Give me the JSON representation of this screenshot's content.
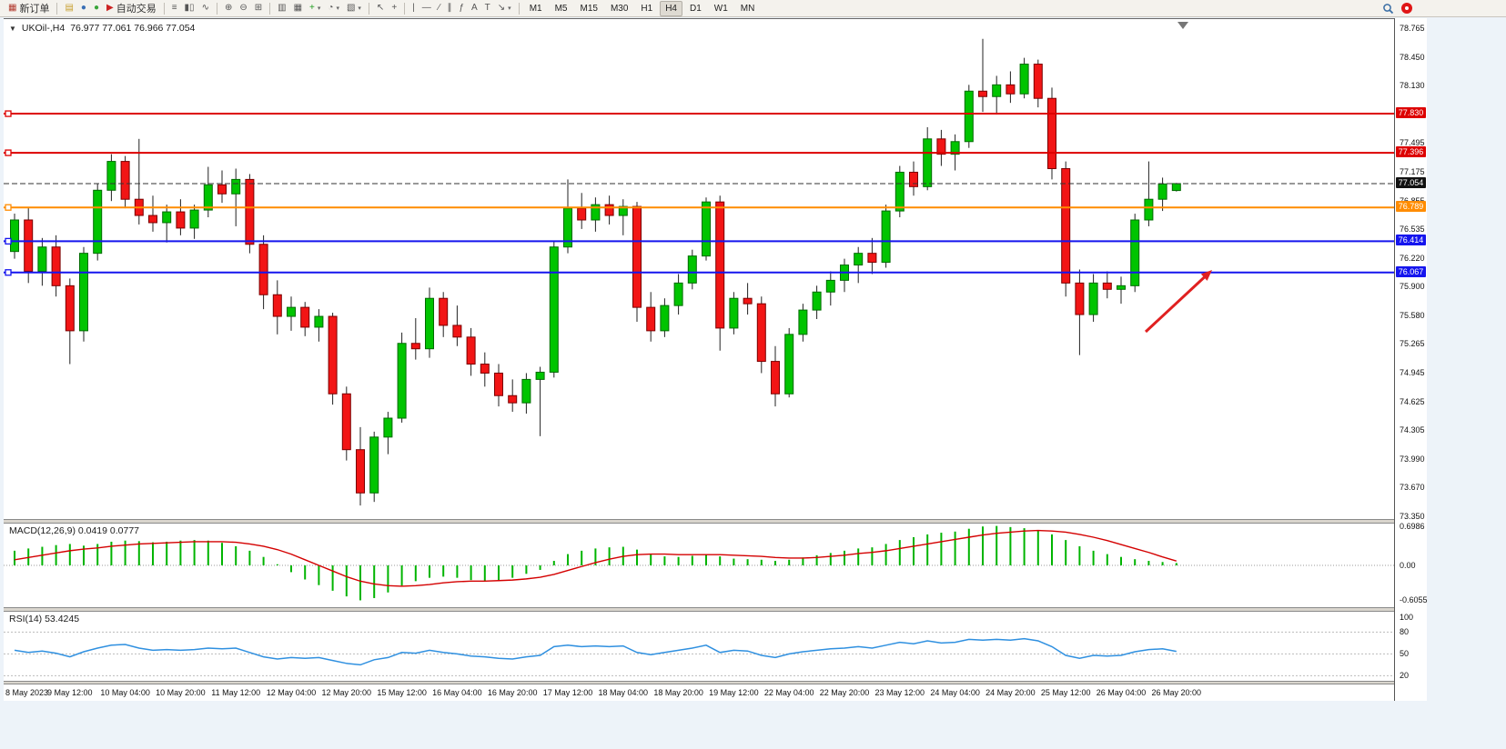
{
  "toolbar": {
    "groups": [
      {
        "items": [
          {
            "name": "new-order-button",
            "glyph": "▦",
            "glyph_color": "#b23a2e",
            "label": "新订单"
          }
        ]
      },
      {
        "items": [
          {
            "name": "charts-button",
            "glyph": "▤",
            "glyph_color": "#c79f2e"
          },
          {
            "name": "profiles-button",
            "glyph": "●",
            "glyph_color": "#3a6fb5"
          },
          {
            "name": "market-watch-button",
            "glyph": "●",
            "glyph_color": "#3aa53a"
          },
          {
            "name": "autotrade-button",
            "glyph": "▶",
            "glyph_color": "#cc2222",
            "label": "自动交易"
          }
        ]
      },
      {
        "items": [
          {
            "name": "bar-chart-button",
            "glyph": "≡"
          },
          {
            "name": "candlestick-chart-button",
            "glyph": "▮▯"
          },
          {
            "name": "line-chart-button",
            "glyph": "∿"
          }
        ]
      },
      {
        "items": [
          {
            "name": "zoom-in-button",
            "glyph": "⊕"
          },
          {
            "name": "zoom-out-button",
            "glyph": "⊖"
          },
          {
            "name": "tile-windows-button",
            "glyph": "⊞"
          }
        ]
      },
      {
        "items": [
          {
            "name": "navigator-button",
            "glyph": "▥"
          },
          {
            "name": "data-window-button",
            "glyph": "▦"
          },
          {
            "name": "add-indicator-button",
            "glyph": "+",
            "glyph_color": "#1f9d1f",
            "dropdown": true
          },
          {
            "name": "period-button",
            "glyph": "◔",
            "dropdown": true
          },
          {
            "name": "template-button",
            "glyph": "▧",
            "dropdown": true
          }
        ]
      },
      {
        "items": [
          {
            "name": "cursor-button",
            "glyph": "↖"
          },
          {
            "name": "crosshair-button",
            "glyph": "+"
          }
        ]
      },
      {
        "items": [
          {
            "name": "vertical-line-button",
            "glyph": "|"
          },
          {
            "name": "horizontal-line-button",
            "glyph": "—"
          },
          {
            "name": "trendline-button",
            "glyph": "∕"
          },
          {
            "name": "channel-button",
            "glyph": "∥"
          },
          {
            "name": "fibonacci-button",
            "glyph": "ƒ"
          },
          {
            "name": "text-button",
            "glyph": "A"
          },
          {
            "name": "text-label-button",
            "glyph": "T"
          },
          {
            "name": "arrows-button",
            "glyph": "↘",
            "dropdown": true
          }
        ]
      }
    ],
    "timeframes": [
      "M1",
      "M5",
      "M15",
      "M30",
      "H1",
      "H4",
      "D1",
      "W1",
      "MN"
    ],
    "active_timeframe": "H4"
  },
  "chart": {
    "symbol_header": {
      "collapse_icon": "▼",
      "title": "UKOil-,H4",
      "ohlc": "76.977 77.061 76.966 77.054"
    },
    "levels": [
      {
        "price": 77.83,
        "label": "77.830",
        "color": "#dd0000"
      },
      {
        "price": 77.396,
        "label": "77.396",
        "color": "#dd0000"
      },
      {
        "price": 76.789,
        "label": "76.789",
        "color": "#ff8c00"
      },
      {
        "price": 76.414,
        "label": "76.414",
        "color": "#1515ee"
      },
      {
        "price": 76.067,
        "label": "76.067",
        "color": "#1515ee"
      }
    ],
    "current_price": {
      "value": 77.054,
      "label": "77.054",
      "color": "#111111"
    },
    "arrow_color": "#e02020"
  },
  "indicators": {
    "macd": {
      "label": "MACD(12,26,9) 0.0419 0.0777",
      "axis": [
        "0.6986",
        "0.00",
        "-0.6055"
      ],
      "hist_color": "#00b400",
      "signal_color": "#d40000"
    },
    "rsi": {
      "label": "RSI(14) 53.4245",
      "axis": [
        "100",
        "80",
        "50",
        "20"
      ],
      "line_color": "#2f90e0"
    }
  },
  "chart_data": {
    "type": "candlestick",
    "symbol": "UKOil-",
    "timeframe": "H4",
    "ohlc_display": [
      76.977,
      77.061,
      76.966,
      77.054
    ],
    "price_range": [
      73.32,
      78.88
    ],
    "y_axis_ticks": [
      "78.765",
      "78.450",
      "78.130",
      "77.815",
      "77.495",
      "77.175",
      "76.855",
      "76.535",
      "76.220",
      "75.900",
      "75.580",
      "75.265",
      "74.945",
      "74.625",
      "74.305",
      "73.990",
      "73.670",
      "73.350"
    ],
    "levels": [
      77.83,
      77.396,
      76.789,
      76.414,
      76.067
    ],
    "current_price": 77.054,
    "label_every": 4,
    "time_labels": [
      "8 May 2023",
      "9 May 12:00",
      "10 May 04:00",
      "10 May 20:00",
      "11 May 12:00",
      "12 May 04:00",
      "12 May 20:00",
      "15 May 12:00",
      "16 May 04:00",
      "16 May 20:00",
      "17 May 12:00",
      "18 May 04:00",
      "18 May 20:00",
      "19 May 12:00",
      "22 May 04:00",
      "22 May 20:00",
      "23 May 12:00",
      "24 May 04:00",
      "24 May 20:00",
      "25 May 12:00",
      "26 May 04:00",
      "26 May 20:00"
    ],
    "candles": [
      [
        76.3,
        76.72,
        76.22,
        76.65
      ],
      [
        76.65,
        76.78,
        75.95,
        76.08
      ],
      [
        76.08,
        76.45,
        75.92,
        76.35
      ],
      [
        76.35,
        76.48,
        75.8,
        75.92
      ],
      [
        75.92,
        76.0,
        75.05,
        75.42
      ],
      [
        75.42,
        76.35,
        75.3,
        76.28
      ],
      [
        76.28,
        77.05,
        76.2,
        76.98
      ],
      [
        76.98,
        77.38,
        76.86,
        77.3
      ],
      [
        77.3,
        77.36,
        76.78,
        76.88
      ],
      [
        76.88,
        77.55,
        76.6,
        76.7
      ],
      [
        76.7,
        76.92,
        76.52,
        76.62
      ],
      [
        76.62,
        76.82,
        76.4,
        76.74
      ],
      [
        76.74,
        76.88,
        76.48,
        76.56
      ],
      [
        76.56,
        76.82,
        76.44,
        76.76
      ],
      [
        76.76,
        77.24,
        76.68,
        77.04
      ],
      [
        77.04,
        77.2,
        76.84,
        76.94
      ],
      [
        76.94,
        77.22,
        76.58,
        77.1
      ],
      [
        77.1,
        77.16,
        76.28,
        76.38
      ],
      [
        76.38,
        76.48,
        75.66,
        75.82
      ],
      [
        75.82,
        75.98,
        75.38,
        75.58
      ],
      [
        75.58,
        75.8,
        75.42,
        75.68
      ],
      [
        75.68,
        75.74,
        75.36,
        75.46
      ],
      [
        75.46,
        75.66,
        75.3,
        75.58
      ],
      [
        75.58,
        75.62,
        74.6,
        74.72
      ],
      [
        74.72,
        74.8,
        73.98,
        74.1
      ],
      [
        74.1,
        74.35,
        73.48,
        73.62
      ],
      [
        73.62,
        74.3,
        73.52,
        74.24
      ],
      [
        74.24,
        74.52,
        74.05,
        74.45
      ],
      [
        74.45,
        75.4,
        74.4,
        75.28
      ],
      [
        75.28,
        75.56,
        75.1,
        75.22
      ],
      [
        75.22,
        75.9,
        75.12,
        75.78
      ],
      [
        75.78,
        75.85,
        75.35,
        75.48
      ],
      [
        75.48,
        75.7,
        75.25,
        75.35
      ],
      [
        75.35,
        75.45,
        74.92,
        75.05
      ],
      [
        75.05,
        75.18,
        74.8,
        74.95
      ],
      [
        74.95,
        75.05,
        74.58,
        74.7
      ],
      [
        74.7,
        74.88,
        74.52,
        74.62
      ],
      [
        74.62,
        74.95,
        74.5,
        74.88
      ],
      [
        74.88,
        75.02,
        74.25,
        74.96
      ],
      [
        74.96,
        76.42,
        74.9,
        76.35
      ],
      [
        76.35,
        77.1,
        76.28,
        76.78
      ],
      [
        76.78,
        76.95,
        76.55,
        76.65
      ],
      [
        76.65,
        76.9,
        76.52,
        76.82
      ],
      [
        76.82,
        76.92,
        76.6,
        76.7
      ],
      [
        76.7,
        76.88,
        76.48,
        76.8
      ],
      [
        76.8,
        76.85,
        75.52,
        75.68
      ],
      [
        75.68,
        75.85,
        75.3,
        75.42
      ],
      [
        75.42,
        75.78,
        75.35,
        75.7
      ],
      [
        75.7,
        76.05,
        75.6,
        75.95
      ],
      [
        75.95,
        76.32,
        75.88,
        76.25
      ],
      [
        76.25,
        76.9,
        76.2,
        76.85
      ],
      [
        76.85,
        76.92,
        75.2,
        75.45
      ],
      [
        75.45,
        75.85,
        75.38,
        75.78
      ],
      [
        75.78,
        75.95,
        75.6,
        75.72
      ],
      [
        75.72,
        75.8,
        74.95,
        75.08
      ],
      [
        75.08,
        75.25,
        74.58,
        74.72
      ],
      [
        74.72,
        75.45,
        74.68,
        75.38
      ],
      [
        75.38,
        75.72,
        75.3,
        75.65
      ],
      [
        75.65,
        75.92,
        75.55,
        75.85
      ],
      [
        75.85,
        76.08,
        75.7,
        75.98
      ],
      [
        75.98,
        76.22,
        75.85,
        76.15
      ],
      [
        76.15,
        76.35,
        75.95,
        76.28
      ],
      [
        76.28,
        76.45,
        76.05,
        76.18
      ],
      [
        76.18,
        76.82,
        76.12,
        76.75
      ],
      [
        76.75,
        77.25,
        76.68,
        77.18
      ],
      [
        77.18,
        77.3,
        76.92,
        77.02
      ],
      [
        77.02,
        77.68,
        76.98,
        77.55
      ],
      [
        77.55,
        77.65,
        77.25,
        77.38
      ],
      [
        77.38,
        77.6,
        77.2,
        77.52
      ],
      [
        77.52,
        78.15,
        77.45,
        78.08
      ],
      [
        78.08,
        78.66,
        77.85,
        78.02
      ],
      [
        78.02,
        78.25,
        77.82,
        78.15
      ],
      [
        78.15,
        78.3,
        77.95,
        78.05
      ],
      [
        78.05,
        78.45,
        78.0,
        78.38
      ],
      [
        78.38,
        78.43,
        77.9,
        78.0
      ],
      [
        78.0,
        78.12,
        77.1,
        77.22
      ],
      [
        77.22,
        77.3,
        75.8,
        75.95
      ],
      [
        75.95,
        76.1,
        75.15,
        75.6
      ],
      [
        75.6,
        76.05,
        75.52,
        75.95
      ],
      [
        75.95,
        76.08,
        75.78,
        75.88
      ],
      [
        75.88,
        76.02,
        75.72,
        75.92
      ],
      [
        75.92,
        76.72,
        75.85,
        76.65
      ],
      [
        76.65,
        77.3,
        76.58,
        76.88
      ],
      [
        76.88,
        77.12,
        76.75,
        77.05
      ],
      [
        76.977,
        77.061,
        76.966,
        77.054
      ]
    ],
    "macd": {
      "params": "12,26,9",
      "last_main": 0.0419,
      "last_signal": 0.0777,
      "scale": [
        0.6986,
        0.0,
        -0.6055
      ],
      "hist": [
        0.26,
        0.3,
        0.33,
        0.36,
        0.38,
        0.35,
        0.38,
        0.42,
        0.44,
        0.43,
        0.41,
        0.42,
        0.44,
        0.45,
        0.44,
        0.4,
        0.34,
        0.26,
        0.15,
        0.02,
        -0.12,
        -0.25,
        -0.35,
        -0.45,
        -0.55,
        -0.62,
        -0.58,
        -0.48,
        -0.36,
        -0.28,
        -0.22,
        -0.2,
        -0.22,
        -0.26,
        -0.28,
        -0.26,
        -0.22,
        -0.15,
        -0.08,
        0.08,
        0.2,
        0.26,
        0.3,
        0.32,
        0.33,
        0.28,
        0.2,
        0.16,
        0.15,
        0.17,
        0.2,
        0.16,
        0.12,
        0.11,
        0.1,
        0.08,
        0.1,
        0.14,
        0.18,
        0.22,
        0.26,
        0.3,
        0.32,
        0.38,
        0.45,
        0.5,
        0.55,
        0.58,
        0.6,
        0.65,
        0.69,
        0.7,
        0.68,
        0.66,
        0.62,
        0.55,
        0.45,
        0.34,
        0.26,
        0.2,
        0.15,
        0.11,
        0.08,
        0.06,
        0.0419
      ],
      "signal": [
        0.1,
        0.14,
        0.18,
        0.22,
        0.26,
        0.29,
        0.31,
        0.34,
        0.36,
        0.38,
        0.39,
        0.4,
        0.41,
        0.42,
        0.42,
        0.42,
        0.41,
        0.38,
        0.34,
        0.28,
        0.2,
        0.1,
        0.0,
        -0.1,
        -0.2,
        -0.28,
        -0.33,
        -0.36,
        -0.37,
        -0.36,
        -0.34,
        -0.31,
        -0.29,
        -0.28,
        -0.28,
        -0.27,
        -0.26,
        -0.24,
        -0.21,
        -0.16,
        -0.09,
        -0.02,
        0.05,
        0.11,
        0.16,
        0.19,
        0.2,
        0.2,
        0.19,
        0.19,
        0.19,
        0.19,
        0.18,
        0.17,
        0.16,
        0.14,
        0.13,
        0.13,
        0.14,
        0.16,
        0.18,
        0.21,
        0.23,
        0.26,
        0.3,
        0.34,
        0.38,
        0.42,
        0.46,
        0.5,
        0.54,
        0.57,
        0.59,
        0.61,
        0.62,
        0.61,
        0.59,
        0.55,
        0.5,
        0.44,
        0.37,
        0.3,
        0.23,
        0.15,
        0.0777
      ]
    },
    "rsi": {
      "period": 14,
      "last": 53.4245,
      "levels": [
        80,
        50,
        20
      ],
      "values": [
        55,
        52,
        54,
        51,
        46,
        53,
        58,
        62,
        63,
        58,
        55,
        56,
        55,
        56,
        58,
        57,
        58,
        52,
        46,
        43,
        45,
        44,
        45,
        41,
        37,
        35,
        42,
        45,
        52,
        51,
        55,
        52,
        50,
        47,
        46,
        44,
        43,
        46,
        48,
        60,
        62,
        60,
        61,
        60,
        61,
        52,
        49,
        52,
        55,
        58,
        62,
        52,
        55,
        54,
        48,
        45,
        50,
        53,
        55,
        57,
        58,
        60,
        58,
        62,
        66,
        64,
        68,
        65,
        66,
        70,
        69,
        70,
        69,
        71,
        68,
        60,
        48,
        44,
        48,
        47,
        48,
        53,
        56,
        57,
        53.42
      ]
    }
  }
}
